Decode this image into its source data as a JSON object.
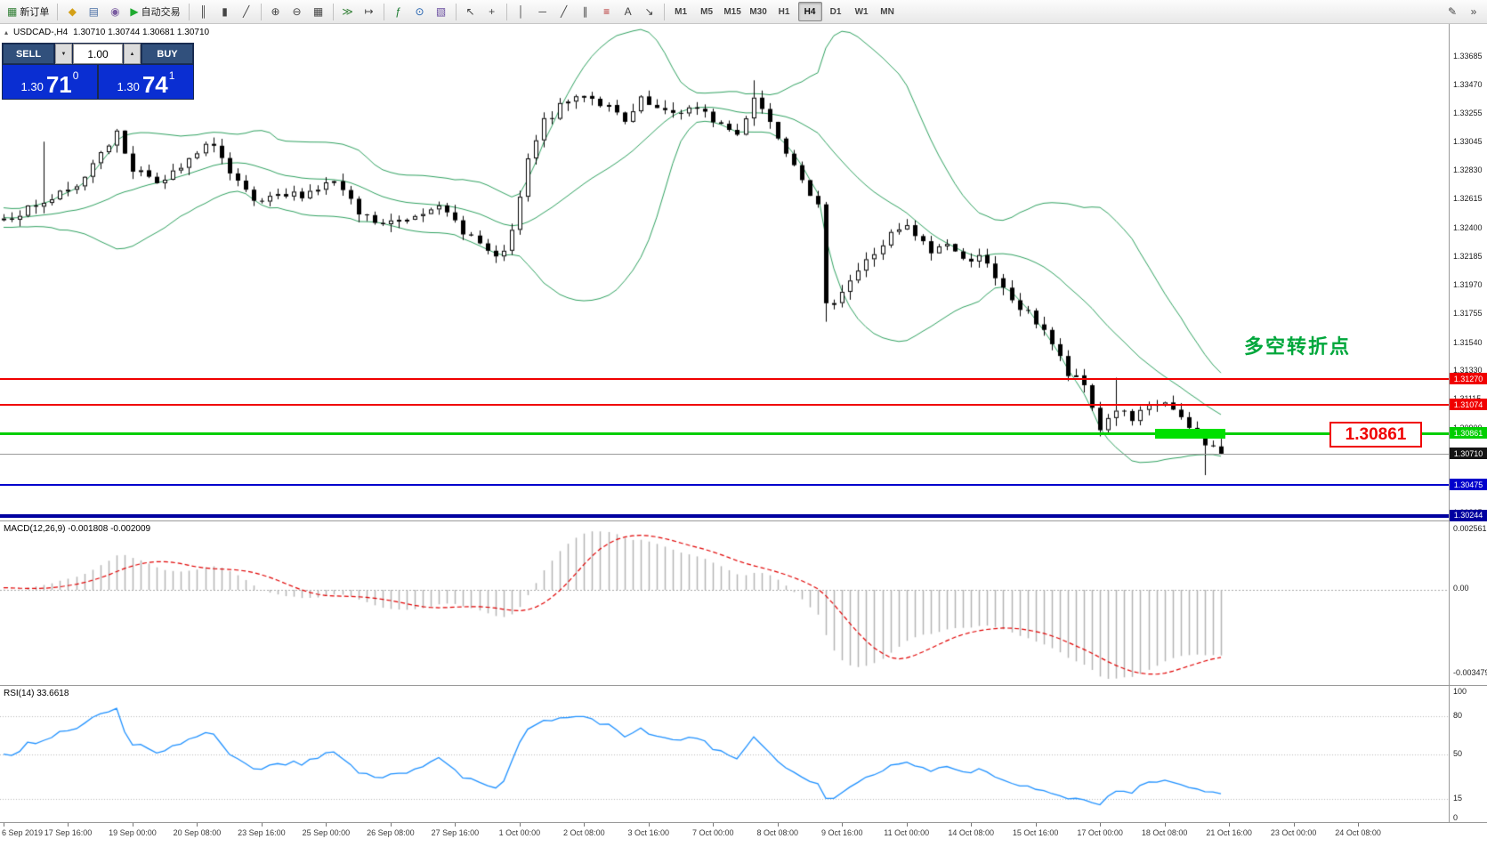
{
  "toolbar": {
    "groups": [
      [
        {
          "name": "new-order-button",
          "glyph": "▦",
          "glyph_color": "#2e7d32",
          "label": "新订单"
        }
      ],
      [
        {
          "name": "chart-profiles-button",
          "glyph": "◆",
          "glyph_color": "#d4a017"
        },
        {
          "name": "data-window-button",
          "glyph": "▤",
          "glyph_color": "#4a6fa5"
        },
        {
          "name": "strategy-tester-button",
          "glyph": "◉",
          "glyph_color": "#7a5ca0"
        },
        {
          "name": "autotrade-button",
          "glyph": "▶",
          "glyph_color": "#1faa30",
          "label": "自动交易"
        }
      ],
      [
        {
          "name": "bar-chart-button",
          "glyph": "║"
        },
        {
          "name": "candlestick-chart-button",
          "glyph": "▮"
        },
        {
          "name": "line-chart-button",
          "glyph": "╱"
        }
      ],
      [
        {
          "name": "zoom-in-button",
          "glyph": "⊕"
        },
        {
          "name": "zoom-out-button",
          "glyph": "⊖"
        },
        {
          "name": "tile-windows-button",
          "glyph": "▦"
        }
      ],
      [
        {
          "name": "auto-scroll-button",
          "glyph": "≫",
          "glyph_color": "#2e7d32"
        },
        {
          "name": "chart-shift-button",
          "glyph": "↦"
        }
      ],
      [
        {
          "name": "indicators-button",
          "glyph": "ƒ",
          "glyph_color": "#1b7a2f"
        },
        {
          "name": "periods-button",
          "glyph": "⊙",
          "glyph_color": "#1f5fae"
        },
        {
          "name": "templates-button",
          "glyph": "▧",
          "glyph_color": "#6b4fa0"
        }
      ],
      [
        {
          "name": "cursor-button",
          "glyph": "↖"
        },
        {
          "name": "crosshair-button",
          "glyph": "+"
        }
      ],
      [
        {
          "name": "vertical-line-button",
          "glyph": "│"
        },
        {
          "name": "horizontal-line-button",
          "glyph": "─"
        },
        {
          "name": "trendline-button",
          "glyph": "╱"
        },
        {
          "name": "channel-button",
          "glyph": "∥"
        },
        {
          "name": "fibonacci-button",
          "glyph": "≡",
          "glyph_color": "#b02020"
        },
        {
          "name": "text-button",
          "glyph": "A"
        },
        {
          "name": "arrows-button",
          "glyph": "↘"
        }
      ]
    ],
    "timeframes": [
      "M1",
      "M5",
      "M15",
      "M30",
      "H1",
      "H4",
      "D1",
      "W1",
      "MN"
    ],
    "active_timeframe": "H4",
    "right_buttons": [
      {
        "name": "toolbar-edit-button",
        "glyph": "✎"
      },
      {
        "name": "toolbar-more-button",
        "glyph": "»"
      }
    ]
  },
  "chart": {
    "icon_glyph": "▴",
    "title": "USDCAD-,H4",
    "ohlc": "1.30710 1.30744 1.30681 1.30710"
  },
  "trade_panel": {
    "sell_label": "SELL",
    "buy_label": "BUY",
    "volume": "1.00",
    "volume_down_glyph": "▼",
    "volume_up_glyph": "▲",
    "sell_price_prefix": "1.30",
    "sell_price_big": "71",
    "sell_price_sup": "0",
    "buy_price_prefix": "1.30",
    "buy_price_big": "74",
    "buy_price_sup": "1"
  },
  "price_axis": {
    "ticks": [
      "1.33685",
      "1.33470",
      "1.33255",
      "1.33045",
      "1.32830",
      "1.32615",
      "1.32400",
      "1.32185",
      "1.31970",
      "1.31755",
      "1.31540",
      "1.31330",
      "1.31115",
      "1.30900",
      "1.30685",
      "1.30475",
      "1.30265"
    ]
  },
  "hlines": [
    {
      "name": "resistance-line-1",
      "price": 1.3127,
      "label": "1.31270",
      "color": "#f00000",
      "thickness": 2
    },
    {
      "name": "resistance-line-2",
      "price": 1.31074,
      "label": "1.31074",
      "color": "#f00000",
      "thickness": 2
    },
    {
      "name": "pivot-line",
      "price": 1.30861,
      "label": "1.30861",
      "color": "#00ce00",
      "thickness": 3
    },
    {
      "name": "support-line-1",
      "price": 1.30475,
      "label": "1.30475",
      "color": "#0000cc",
      "thickness": 2
    },
    {
      "name": "support-line-2",
      "price": 1.30244,
      "label": "1.30244",
      "color": "#0000a0",
      "thickness": 4
    }
  ],
  "current_price": {
    "price": 1.3071,
    "label": "1.30710",
    "line_color": "#9a9a9a",
    "tag_color": "#141414"
  },
  "annotations": {
    "turning_point": "多空转折点",
    "turning_point_color": "#00a73c",
    "callout_label": "1.30861",
    "callout_color": "#f00000",
    "highlight_rect_color": "#00e000"
  },
  "indicators": {
    "macd": {
      "label": "MACD(12,26,9)",
      "values": "-0.001808 -0.002009",
      "axis_labels": [
        "0.002561",
        "0.00",
        "-0.003479"
      ]
    },
    "rsi": {
      "label": "RSI(14)",
      "value": "33.6618",
      "axis_labels": [
        "100",
        "80",
        "50",
        "15",
        "0"
      ]
    }
  },
  "time_axis": {
    "labels": [
      "6 Sep 2019",
      "17 Sep 16:00",
      "19 Sep 00:00",
      "20 Sep 08:00",
      "23 Sep 16:00",
      "25 Sep 00:00",
      "26 Sep 08:00",
      "27 Sep 16:00",
      "1 Oct 00:00",
      "2 Oct 08:00",
      "3 Oct 16:00",
      "7 Oct 00:00",
      "8 Oct 08:00",
      "9 Oct 16:00",
      "11 Oct 00:00",
      "14 Oct 08:00",
      "15 Oct 16:00",
      "17 Oct 00:00",
      "18 Oct 08:00",
      "21 Oct 16:00",
      "23 Oct 00:00",
      "24 Oct 08:00"
    ]
  },
  "chart_data": {
    "type": "candlestick",
    "symbol": "USDCAD-",
    "timeframe": "H4",
    "visible_price_range": [
      1.3021,
      1.33932
    ],
    "num_candles": 152,
    "warmup": 40,
    "seed": 7,
    "noise": 0.0008,
    "anchors": [
      [
        0,
        1.3248
      ],
      [
        6,
        1.3262
      ],
      [
        9,
        1.327
      ],
      [
        12,
        1.33
      ],
      [
        14,
        1.331
      ],
      [
        16,
        1.3285
      ],
      [
        20,
        1.3275
      ],
      [
        24,
        1.3295
      ],
      [
        26,
        1.3305
      ],
      [
        28,
        1.328
      ],
      [
        31,
        1.3258
      ],
      [
        34,
        1.3262
      ],
      [
        38,
        1.3268
      ],
      [
        41,
        1.3275
      ],
      [
        44,
        1.325
      ],
      [
        47,
        1.3242
      ],
      [
        50,
        1.3248
      ],
      [
        53,
        1.3258
      ],
      [
        56,
        1.3245
      ],
      [
        59,
        1.3228
      ],
      [
        61,
        1.3215
      ],
      [
        63,
        1.3235
      ],
      [
        65,
        1.329
      ],
      [
        67,
        1.332
      ],
      [
        70,
        1.3335
      ],
      [
        72,
        1.3342
      ],
      [
        75,
        1.333
      ],
      [
        77,
        1.3318
      ],
      [
        79,
        1.3335
      ],
      [
        82,
        1.3325
      ],
      [
        85,
        1.333
      ],
      [
        88,
        1.3322
      ],
      [
        91,
        1.331
      ],
      [
        93,
        1.334
      ],
      [
        95,
        1.332
      ],
      [
        97,
        1.33
      ],
      [
        99,
        1.328
      ],
      [
        101,
        1.3255
      ],
      [
        102,
        1.318
      ],
      [
        104,
        1.3195
      ],
      [
        107,
        1.3215
      ],
      [
        110,
        1.3235
      ],
      [
        112,
        1.324
      ],
      [
        115,
        1.3222
      ],
      [
        117,
        1.323
      ],
      [
        119,
        1.3215
      ],
      [
        121,
        1.3222
      ],
      [
        123,
        1.32
      ],
      [
        126,
        1.318
      ],
      [
        129,
        1.3165
      ],
      [
        132,
        1.313
      ],
      [
        134,
        1.3122
      ],
      [
        136,
        1.309
      ],
      [
        138,
        1.3105
      ],
      [
        140,
        1.3095
      ],
      [
        142,
        1.3105
      ],
      [
        144,
        1.311
      ],
      [
        146,
        1.3095
      ],
      [
        148,
        1.3085
      ],
      [
        150,
        1.3075
      ],
      [
        151,
        1.3071
      ]
    ],
    "wicks": [
      [
        5,
        "h",
        1.3305
      ],
      [
        93,
        "h",
        1.3351
      ],
      [
        102,
        "l",
        1.317
      ],
      [
        138,
        "h",
        1.3128
      ],
      [
        149,
        "l",
        1.3055
      ]
    ],
    "indicator_params": {
      "bollinger": {
        "period": 20,
        "deviation": 2,
        "color": "#2ea05f"
      },
      "macd": {
        "fast": 12,
        "slow": 26,
        "signal": 9,
        "histogram_color": "#b4b4b4",
        "signal_color": "#e00000"
      },
      "rsi": {
        "period": 14,
        "color": "#1e90ff",
        "levels": [
          80,
          50,
          15
        ]
      }
    }
  }
}
